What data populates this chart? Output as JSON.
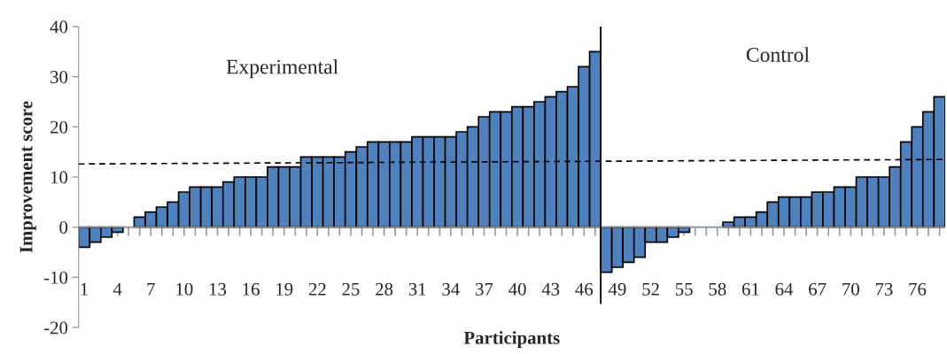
{
  "chart_data": {
    "type": "bar",
    "xlabel": "Participants",
    "ylabel": "Improvement score",
    "x": [
      1,
      2,
      3,
      4,
      5,
      6,
      7,
      8,
      9,
      10,
      11,
      12,
      13,
      14,
      15,
      16,
      17,
      18,
      19,
      20,
      21,
      22,
      23,
      24,
      25,
      26,
      27,
      28,
      29,
      30,
      31,
      32,
      33,
      34,
      35,
      36,
      37,
      38,
      39,
      40,
      41,
      42,
      43,
      44,
      45,
      46,
      47,
      48,
      49,
      50,
      51,
      52,
      53,
      54,
      55,
      56,
      57,
      58,
      59,
      60,
      61,
      62,
      63,
      64,
      65,
      66,
      67,
      68,
      69,
      70,
      71,
      72,
      73,
      74,
      75,
      76,
      77,
      78
    ],
    "series": [
      {
        "color": "#4f81bd",
        "values": [
          -4,
          -3,
          -2,
          -1,
          0,
          2,
          3,
          4,
          5,
          7,
          8,
          8,
          8,
          9,
          10,
          10,
          10,
          12,
          12,
          12,
          14,
          14,
          14,
          14,
          15,
          16,
          17,
          17,
          17,
          17,
          18,
          18,
          18,
          18,
          19,
          20,
          22,
          23,
          23,
          24,
          24,
          25,
          26,
          27,
          28,
          32,
          35,
          -9,
          -8,
          -7,
          -6,
          -3,
          -3,
          -2,
          -1,
          0,
          0,
          0,
          1,
          2,
          2,
          3,
          5,
          6,
          6,
          6,
          7,
          7,
          8,
          8,
          10,
          10,
          10,
          12,
          17,
          20,
          23,
          26
        ]
      },
      {
        "type": "line",
        "color": "#000000",
        "line_style": "dashed",
        "x": [
          0.5,
          78.5
        ],
        "values": [
          12.6,
          13.5
        ]
      }
    ],
    "ref_lines": [
      {
        "axis": "x",
        "value": 47.5,
        "color": "#000000",
        "line_style": "solid"
      }
    ],
    "annotations": [
      "Experimental",
      "Control"
    ],
    "xlim": [
      0.5,
      78.5
    ],
    "xticks": [
      1,
      {
        "value": 2,
        "label": null
      },
      {
        "value": 3,
        "label": null
      },
      4,
      {
        "value": 5,
        "label": null
      },
      {
        "value": 6,
        "label": null
      },
      7,
      {
        "value": 8,
        "label": null
      },
      {
        "value": 9,
        "label": null
      },
      10,
      {
        "value": 11,
        "label": null
      },
      {
        "value": 12,
        "label": null
      },
      13,
      {
        "value": 14,
        "label": null
      },
      {
        "value": 15,
        "label": null
      },
      16,
      {
        "value": 17,
        "label": null
      },
      {
        "value": 18,
        "label": null
      },
      19,
      {
        "value": 20,
        "label": null
      },
      {
        "value": 21,
        "label": null
      },
      22,
      {
        "value": 23,
        "label": null
      },
      {
        "value": 24,
        "label": null
      },
      25,
      {
        "value": 26,
        "label": null
      },
      {
        "value": 27,
        "label": null
      },
      28,
      {
        "value": 29,
        "label": null
      },
      {
        "value": 30,
        "label": null
      },
      31,
      {
        "value": 32,
        "label": null
      },
      {
        "value": 33,
        "label": null
      },
      34,
      {
        "value": 35,
        "label": null
      },
      {
        "value": 36,
        "label": null
      },
      37,
      {
        "value": 38,
        "label": null
      },
      {
        "value": 39,
        "label": null
      },
      40,
      {
        "value": 41,
        "label": null
      },
      {
        "value": 42,
        "label": null
      },
      43,
      {
        "value": 44,
        "label": null
      },
      {
        "value": 45,
        "label": null
      },
      46,
      {
        "value": 47,
        "label": null
      },
      {
        "value": 48,
        "label": null
      },
      49,
      {
        "value": 50,
        "label": null
      },
      {
        "value": 51,
        "label": null
      },
      52,
      {
        "value": 53,
        "label": null
      },
      {
        "value": 54,
        "label": null
      },
      55,
      {
        "value": 56,
        "label": null
      },
      {
        "value": 57,
        "label": null
      },
      58,
      {
        "value": 59,
        "label": null
      },
      {
        "value": 60,
        "label": null
      },
      61,
      {
        "value": 62,
        "label": null
      },
      {
        "value": 63,
        "label": null
      },
      64,
      {
        "value": 65,
        "label": null
      },
      {
        "value": 66,
        "label": null
      },
      67,
      {
        "value": 68,
        "label": null
      },
      {
        "value": 69,
        "label": null
      },
      70,
      {
        "value": 71,
        "label": null
      },
      {
        "value": 72,
        "label": null
      },
      73,
      {
        "value": 74,
        "label": null
      },
      {
        "value": 75,
        "label": null
      },
      76,
      {
        "value": 77,
        "label": null
      },
      {
        "value": 78,
        "label": null
      }
    ],
    "ylim": [
      -20,
      40
    ],
    "yticks": [
      -20,
      -10,
      0,
      10,
      20,
      30,
      40
    ],
    "legend": false
  }
}
